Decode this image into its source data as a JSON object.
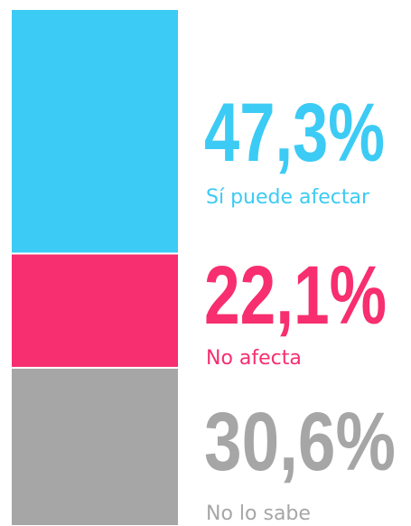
{
  "chart_data": {
    "type": "stacked-bar",
    "series": [
      {
        "name": "Sí puede afectar",
        "color": "#3ccbf4",
        "values": [
          47.3
        ],
        "value_labels": [
          "47,3%"
        ]
      },
      {
        "name": "No afecta",
        "color": "#f72e6f",
        "values": [
          22.1
        ],
        "value_labels": [
          "22,1%"
        ]
      },
      {
        "name": "No lo sabe",
        "color": "#a6a6a6",
        "values": [
          30.6
        ],
        "value_labels": [
          "30,6%"
        ]
      }
    ]
  }
}
